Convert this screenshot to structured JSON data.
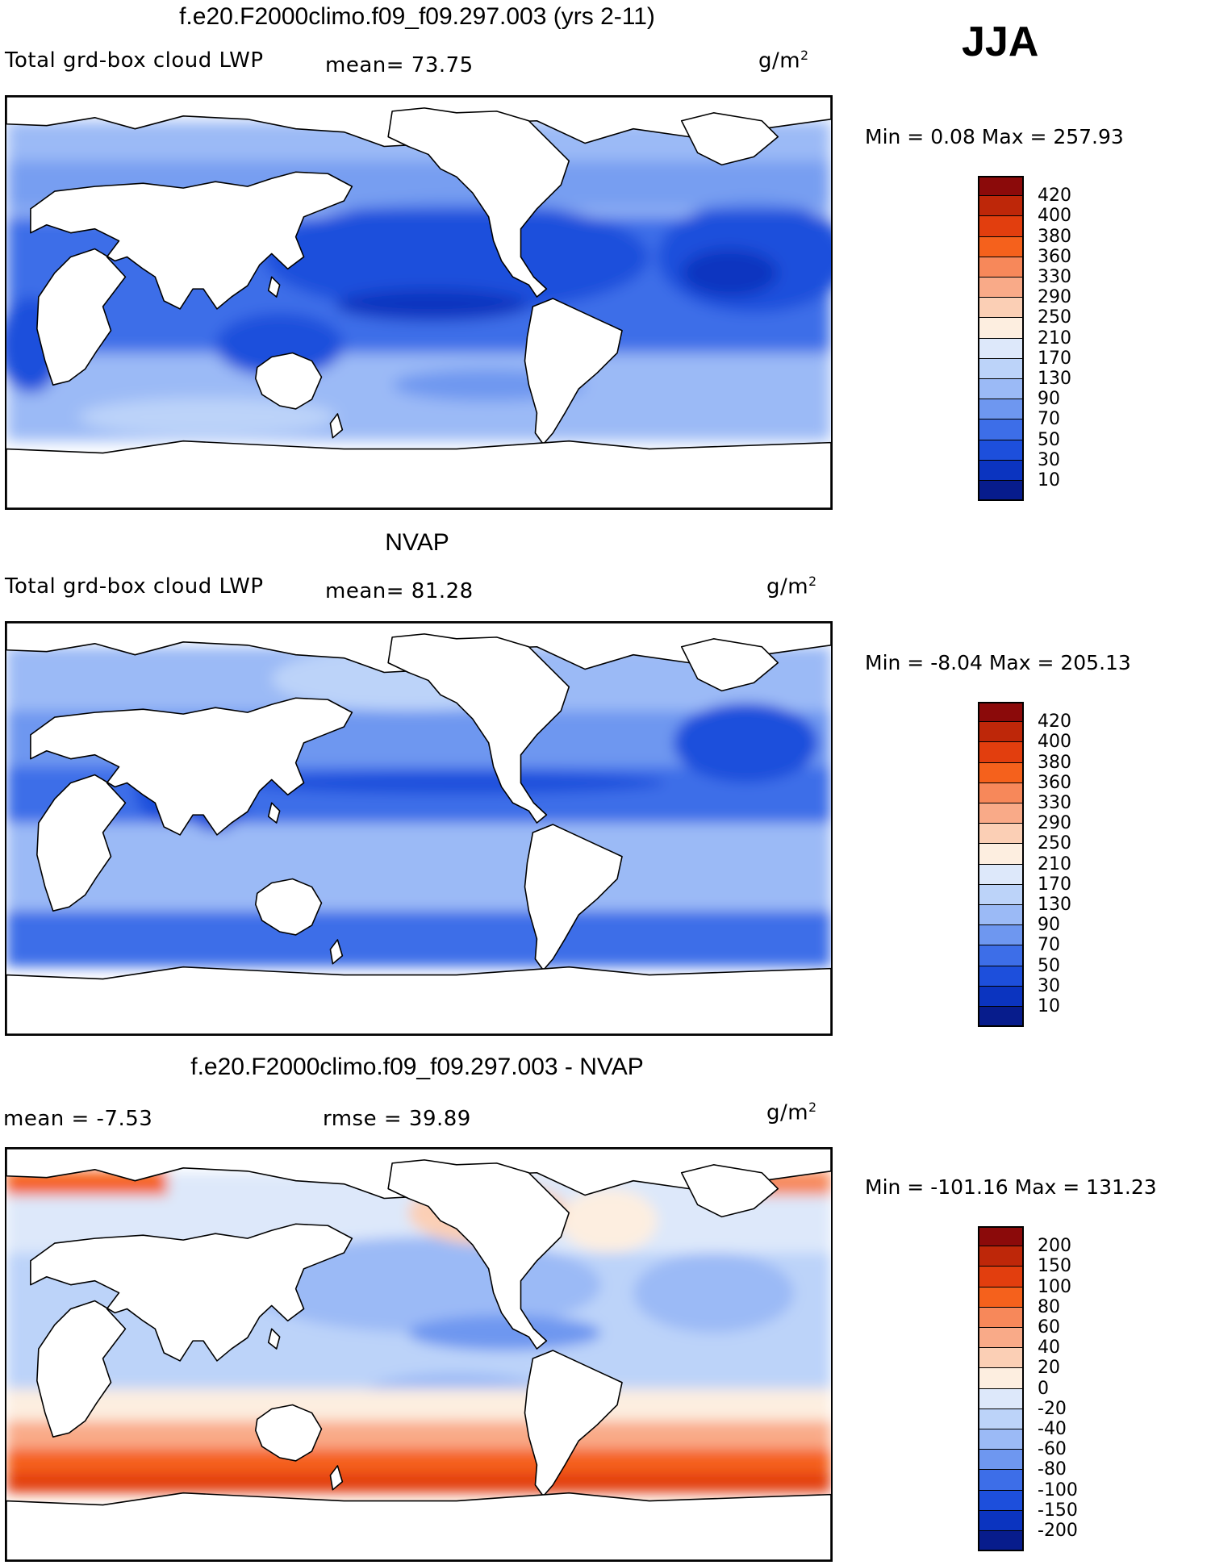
{
  "season": "JJA",
  "panels": [
    {
      "title": "f.e20.F2000climo.f09_f09.297.003 (yrs 2-11)",
      "variable": "Total grd-box cloud LWP",
      "stat_text": "mean=  73.75",
      "rmse_text": "",
      "units": "g/m",
      "units_exp": "2",
      "minmax": "Min =    0.08  Max  =  257.93",
      "colorbar": {
        "colors": [
          "#8b0a0a",
          "#be2709",
          "#e23e0e",
          "#f5611c",
          "#f7885a",
          "#f9aa88",
          "#fbcfb5",
          "#fdeee0",
          "#dde8fa",
          "#bcd3f9",
          "#9bbaf6",
          "#6e97f0",
          "#3d6ee8",
          "#1d4fdc",
          "#0b34c0",
          "#071c8c"
        ],
        "labels": [
          "420",
          "400",
          "380",
          "360",
          "330",
          "290",
          "250",
          "210",
          "170",
          "130",
          "90",
          "70",
          "50",
          "30",
          "10"
        ]
      }
    },
    {
      "title": "NVAP",
      "variable": "Total grd-box cloud LWP",
      "stat_text": "mean=  81.28",
      "rmse_text": "",
      "units": "g/m",
      "units_exp": "2",
      "minmax": "Min  =   -8.04  Max  =  205.13",
      "colorbar": {
        "colors": [
          "#8b0a0a",
          "#be2709",
          "#e23e0e",
          "#f5611c",
          "#f7885a",
          "#f9aa88",
          "#fbcfb5",
          "#fdeee0",
          "#dde8fa",
          "#bcd3f9",
          "#9bbaf6",
          "#6e97f0",
          "#3d6ee8",
          "#1d4fdc",
          "#0b34c0",
          "#071c8c"
        ],
        "labels": [
          "420",
          "400",
          "380",
          "360",
          "330",
          "290",
          "250",
          "210",
          "170",
          "130",
          "90",
          "70",
          "50",
          "30",
          "10"
        ]
      }
    },
    {
      "title": "f.e20.F2000climo.f09_f09.297.003 - NVAP",
      "variable": "",
      "stat_text": "mean  =   -7.53",
      "rmse_text": "rmse  =   39.89",
      "units": "g/m",
      "units_exp": "2",
      "minmax": "Min  = -101.16  Max  =  131.23",
      "colorbar": {
        "colors": [
          "#8b0a0a",
          "#be2709",
          "#e23e0e",
          "#f5611c",
          "#f7885a",
          "#f9aa88",
          "#fbcfb5",
          "#fdeee0",
          "#dde8fa",
          "#bcd3f9",
          "#9bbaf6",
          "#6e97f0",
          "#3d6ee8",
          "#1d4fdc",
          "#0b34c0",
          "#071c8c"
        ],
        "labels": [
          "200",
          "150",
          "100",
          "80",
          "60",
          "40",
          "20",
          "0",
          "-20",
          "-40",
          "-60",
          "-80",
          "-100",
          "-150",
          "-200"
        ]
      }
    }
  ]
}
